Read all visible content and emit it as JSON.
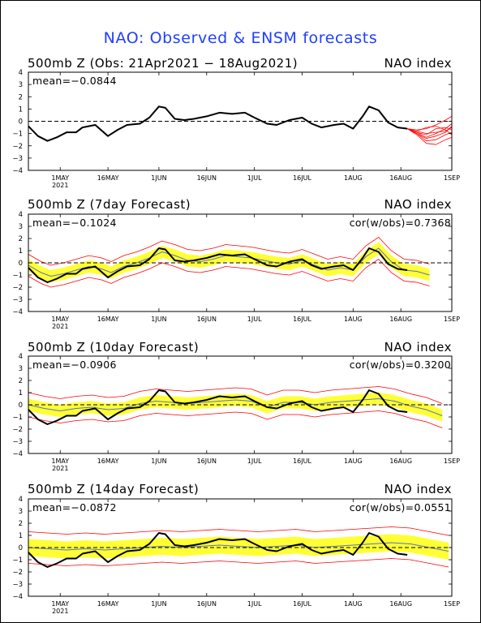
{
  "title": "NAO: Observed & ENSM forecasts",
  "panels": [
    {
      "left": "500mb Z (Obs: 21Apr2021 − 18Aug2021)",
      "right": "NAO index",
      "mean": "mean=−0.0844",
      "cor": ""
    },
    {
      "left": "500mb Z (7day Forecast)",
      "right": "NAO index",
      "mean": "mean=−0.1024",
      "cor": "cor(w/obs)=0.7368"
    },
    {
      "left": "500mb Z (10day Forecast)",
      "right": "NAO index",
      "mean": "mean=−0.0906",
      "cor": "cor(w/obs)=0.3200"
    },
    {
      "left": "500mb Z (14day Forecast)",
      "right": "NAO index",
      "mean": "mean=−0.0872",
      "cor": "cor(w/obs)=0.0551"
    }
  ],
  "chart_data": {
    "type": "line",
    "x_ticks": [
      "1MAY",
      "16MAY",
      "1JUN",
      "16JUN",
      "1JUL",
      "16JUL",
      "1AUG",
      "16AUG",
      "1SEP"
    ],
    "x_year_label": "2021",
    "y_ticks": [
      "4",
      "3",
      "2",
      "1",
      "0",
      "−1",
      "−2",
      "−3",
      "−4"
    ],
    "ylim": [
      -4,
      4
    ],
    "xlim": [
      "2021-04-21",
      "2021-09-01"
    ],
    "colors": {
      "observed": "#000000",
      "ensemble": "#ff0000",
      "spread": "#ffff33",
      "ens_mean": "#5a6ec8",
      "zero_line": "#000000"
    },
    "observed": {
      "dates": [
        "2021-04-21",
        "2021-04-24",
        "2021-04-27",
        "2021-04-30",
        "2021-05-03",
        "2021-05-06",
        "2021-05-08",
        "2021-05-12",
        "2021-05-16",
        "2021-05-19",
        "2021-05-22",
        "2021-05-26",
        "2021-05-29",
        "2021-06-01",
        "2021-06-03",
        "2021-06-06",
        "2021-06-09",
        "2021-06-12",
        "2021-06-16",
        "2021-06-20",
        "2021-06-24",
        "2021-06-28",
        "2021-07-01",
        "2021-07-05",
        "2021-07-08",
        "2021-07-12",
        "2021-07-16",
        "2021-07-19",
        "2021-07-22",
        "2021-07-26",
        "2021-07-29",
        "2021-08-01",
        "2021-08-04",
        "2021-08-06",
        "2021-08-09",
        "2021-08-12",
        "2021-08-15",
        "2021-08-18"
      ],
      "values": [
        -0.4,
        -1.2,
        -1.6,
        -1.3,
        -0.9,
        -0.9,
        -0.5,
        -0.3,
        -1.2,
        -0.7,
        -0.3,
        -0.2,
        0.3,
        1.2,
        1.1,
        0.2,
        0.1,
        0.2,
        0.4,
        0.7,
        0.6,
        0.7,
        0.3,
        -0.2,
        -0.3,
        0.1,
        0.3,
        -0.2,
        -0.5,
        -0.3,
        -0.2,
        -0.6,
        0.4,
        1.2,
        0.9,
        -0.1,
        -0.5,
        -0.6
      ]
    },
    "forecast_7day": {
      "dates": [
        "2021-04-21",
        "2021-04-25",
        "2021-04-28",
        "2021-05-02",
        "2021-05-06",
        "2021-05-10",
        "2021-05-14",
        "2021-05-17",
        "2021-05-21",
        "2021-05-25",
        "2021-05-29",
        "2021-06-02",
        "2021-06-06",
        "2021-06-10",
        "2021-06-14",
        "2021-06-18",
        "2021-06-22",
        "2021-06-26",
        "2021-06-30",
        "2021-07-04",
        "2021-07-08",
        "2021-07-12",
        "2021-07-16",
        "2021-07-20",
        "2021-07-24",
        "2021-07-28",
        "2021-08-01",
        "2021-08-05",
        "2021-08-09",
        "2021-08-13",
        "2021-08-17",
        "2021-08-21",
        "2021-08-25"
      ],
      "mean": [
        -0.2,
        -0.8,
        -1.1,
        -0.9,
        -0.6,
        -0.3,
        -0.5,
        -0.8,
        -0.3,
        0.0,
        0.4,
        0.9,
        0.6,
        0.2,
        0.1,
        0.3,
        0.6,
        0.5,
        0.4,
        0.2,
        0.0,
        -0.1,
        0.2,
        -0.2,
        -0.6,
        -0.4,
        -0.6,
        0.5,
        1.2,
        0.1,
        -0.6,
        -0.7,
        -1.0
      ],
      "spread": [
        0.5,
        0.5,
        0.5,
        0.5,
        0.5,
        0.5,
        0.5,
        0.5,
        0.5,
        0.5,
        0.5,
        0.5,
        0.5,
        0.5,
        0.5,
        0.5,
        0.5,
        0.5,
        0.5,
        0.5,
        0.5,
        0.5,
        0.5,
        0.5,
        0.5,
        0.5,
        0.5,
        0.5,
        0.5,
        0.5,
        0.5,
        0.5,
        0.5
      ],
      "range": [
        0.9,
        0.9,
        0.9,
        0.9,
        0.9,
        0.9,
        0.9,
        0.9,
        0.9,
        0.9,
        0.9,
        0.9,
        0.9,
        0.9,
        0.9,
        0.9,
        0.9,
        0.9,
        0.9,
        0.9,
        0.9,
        0.9,
        0.9,
        0.9,
        0.9,
        0.9,
        0.9,
        0.9,
        0.9,
        0.9,
        0.9,
        0.9,
        0.9
      ]
    },
    "forecast_10day": {
      "dates": [
        "2021-04-21",
        "2021-04-26",
        "2021-05-01",
        "2021-05-06",
        "2021-05-11",
        "2021-05-16",
        "2021-05-21",
        "2021-05-26",
        "2021-05-31",
        "2021-06-05",
        "2021-06-10",
        "2021-06-15",
        "2021-06-20",
        "2021-06-25",
        "2021-06-30",
        "2021-07-05",
        "2021-07-10",
        "2021-07-15",
        "2021-07-20",
        "2021-07-25",
        "2021-07-30",
        "2021-08-04",
        "2021-08-09",
        "2021-08-14",
        "2021-08-19",
        "2021-08-24",
        "2021-08-29"
      ],
      "mean": [
        0.0,
        -0.3,
        -0.5,
        -0.3,
        -0.2,
        -0.4,
        -0.3,
        0.1,
        0.3,
        0.2,
        0.1,
        0.2,
        0.3,
        0.4,
        0.3,
        -0.2,
        0.2,
        0.2,
        0.0,
        0.2,
        0.3,
        0.4,
        0.5,
        0.3,
        -0.1,
        -0.4,
        -0.9
      ],
      "spread": [
        0.5,
        0.5,
        0.5,
        0.5,
        0.5,
        0.5,
        0.5,
        0.5,
        0.5,
        0.5,
        0.5,
        0.5,
        0.5,
        0.5,
        0.5,
        0.5,
        0.5,
        0.5,
        0.5,
        0.5,
        0.5,
        0.5,
        0.5,
        0.5,
        0.5,
        0.5,
        0.5
      ],
      "range": [
        1.0,
        1.0,
        1.0,
        1.0,
        1.0,
        1.0,
        1.0,
        1.0,
        1.0,
        1.0,
        1.0,
        1.0,
        1.0,
        1.0,
        1.0,
        1.0,
        1.0,
        1.0,
        1.0,
        1.0,
        1.0,
        1.0,
        1.0,
        1.0,
        1.0,
        1.0,
        1.0
      ]
    },
    "forecast_14day": {
      "dates": [
        "2021-04-21",
        "2021-04-27",
        "2021-05-03",
        "2021-05-09",
        "2021-05-15",
        "2021-05-21",
        "2021-05-27",
        "2021-06-02",
        "2021-06-08",
        "2021-06-14",
        "2021-06-20",
        "2021-06-26",
        "2021-07-02",
        "2021-07-08",
        "2021-07-14",
        "2021-07-20",
        "2021-07-26",
        "2021-08-01",
        "2021-08-07",
        "2021-08-13",
        "2021-08-19",
        "2021-08-25",
        "2021-08-31"
      ],
      "mean": [
        0.0,
        -0.1,
        -0.2,
        -0.1,
        -0.2,
        -0.1,
        0.0,
        0.1,
        0.0,
        0.1,
        0.2,
        0.1,
        0.0,
        0.1,
        0.2,
        0.0,
        0.1,
        0.2,
        0.3,
        0.4,
        0.3,
        0.0,
        -0.3
      ],
      "spread": [
        0.7,
        0.7,
        0.7,
        0.7,
        0.7,
        0.7,
        0.7,
        0.7,
        0.7,
        0.7,
        0.7,
        0.7,
        0.7,
        0.7,
        0.7,
        0.7,
        0.7,
        0.7,
        0.7,
        0.7,
        0.7,
        0.7,
        0.7
      ],
      "range": [
        1.3,
        1.3,
        1.3,
        1.3,
        1.3,
        1.3,
        1.3,
        1.3,
        1.3,
        1.3,
        1.3,
        1.3,
        1.3,
        1.3,
        1.3,
        1.3,
        1.3,
        1.3,
        1.3,
        1.3,
        1.3,
        1.3,
        1.3
      ]
    },
    "ensemble_members_obs_panel": {
      "dates": [
        "2021-08-18",
        "2021-08-21",
        "2021-08-24",
        "2021-08-27",
        "2021-08-30",
        "2021-09-01"
      ],
      "members": [
        [
          -0.6,
          -0.9,
          -1.3,
          -1.0,
          -0.6,
          -0.2
        ],
        [
          -0.6,
          -0.8,
          -1.0,
          -0.9,
          -0.8,
          -0.5
        ],
        [
          -0.6,
          -1.0,
          -1.6,
          -1.5,
          -1.1,
          -0.9
        ],
        [
          -0.6,
          -0.7,
          -0.6,
          -0.3,
          0.1,
          0.4
        ],
        [
          -0.6,
          -1.1,
          -1.8,
          -1.9,
          -1.5,
          -1.3
        ],
        [
          -0.6,
          -0.9,
          -1.1,
          -0.6,
          -0.5,
          -0.7
        ],
        [
          -0.6,
          -0.8,
          -0.5,
          -0.4,
          -0.7,
          -1.1
        ],
        [
          -0.6,
          -1.0,
          -1.4,
          -1.2,
          -0.9,
          -0.4
        ]
      ]
    }
  }
}
